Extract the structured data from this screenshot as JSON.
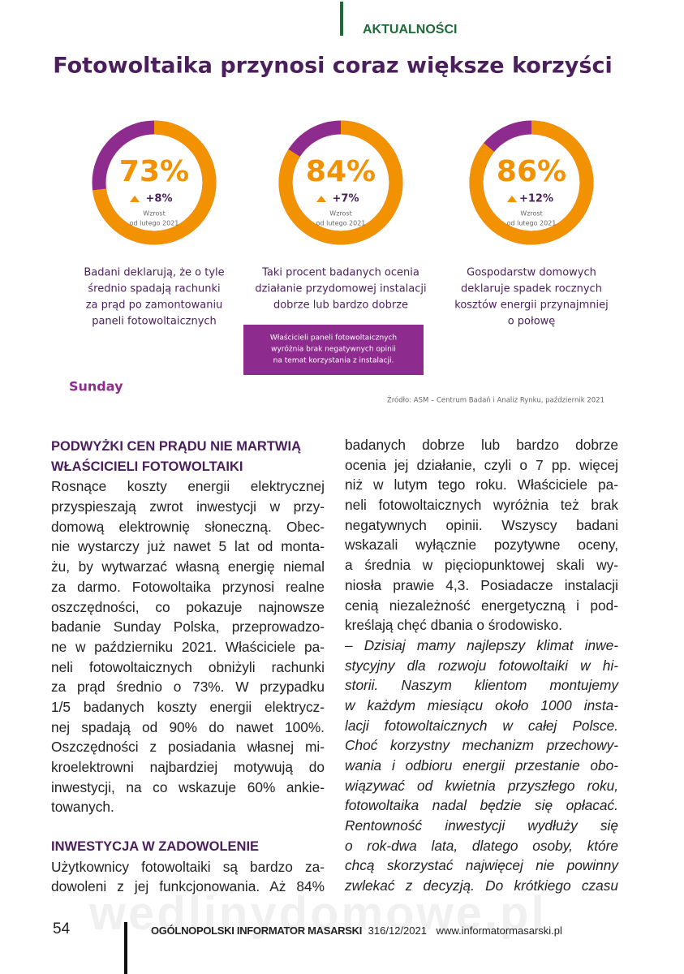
{
  "header": {
    "section": "AKTUALNOŚCI"
  },
  "infographic": {
    "title": "Fotowoltaika przynosi coraz większe korzyści",
    "items": [
      {
        "value": 73,
        "label": "73%",
        "change": "+8%",
        "note": [
          "Wzrost",
          "od lutego 2021"
        ],
        "description": [
          "Badani deklarują, że o tyle",
          "średnio spadają rachunki",
          "za prąd po zamontowaniu",
          "paneli fotowoltaicznych"
        ]
      },
      {
        "value": 84,
        "label": "84%",
        "change": "+7%",
        "note": [
          "Wzrost",
          "od lutego 2021"
        ],
        "description": [
          "Taki procent badanych ocenia",
          "działanie przydomowej instalacji",
          "dobrze lub bardzo dobrze"
        ]
      },
      {
        "value": 86,
        "label": "86%",
        "change": "+12%",
        "note": [
          "Wzrost",
          "od lutego 2021"
        ],
        "description": [
          "Gospodarstw domowych",
          "deklaruje spadek rocznych",
          "kosztów energii przynajmniej",
          "o połowę"
        ]
      }
    ],
    "highlight": [
      "Właścicieli paneli fotowoltaicznych",
      "wyróżnia brak negatywnych opinii",
      "na temat korzystania z instalacji."
    ],
    "logo": "Sunday",
    "source": "Źródło: ASM – Centrum Badań i Analiz Rynku, październik 2021"
  },
  "article": {
    "left": {
      "heading1": [
        "PODWYŻKI CEN PRĄDU NIE MARTWIĄ",
        "WŁAŚCICIELI FOTOWOLTAIKI"
      ],
      "paragraph1": [
        "Rosnące koszty energii elektrycznej",
        "przyspieszają zwrot inwestycji w przy-",
        "domową elektrownię słoneczną. Obec-",
        "nie wystarczy już nawet 5 lat od monta-",
        "żu, by wytwarzać własną energię niemal",
        "za darmo. Fotowoltaika przynosi realne",
        "oszczędności, co pokazuje najnowsze",
        "badanie Sunday Polska, przeprowadzo-",
        "ne w październiku 2021. Właściciele pa-",
        "neli fotowoltaicznych obniżyli rachunki",
        "za prąd średnio o 73%. W przypadku",
        "1/5 badanych koszty energii elektrycz-",
        "nej spadają od 90% do nawet 100%.",
        "Oszczędności z posiadania własnej mi-",
        "kroelektrowni najbardziej motywują do",
        "inwestycji, na co wskazuje 60% ankie-",
        "towanych."
      ],
      "heading2": [
        "INWESTYCJA W ZADOWOLENIE"
      ],
      "paragraph2": [
        "Użytkownicy fotowoltaiki są bardzo za-",
        "dowoleni z jej funkcjonowania. Aż 84%"
      ]
    },
    "right": {
      "paragraph1": [
        "badanych dobrze lub bardzo dobrze",
        "ocenia jej działanie, czyli o 7 pp. więcej",
        "niż w lutym tego roku. Właściciele pa-",
        "neli fotowoltaicznych wyróżnia też brak",
        "negatywnych opinii. Wszyscy badani",
        "wskazali wyłącznie pozytywne oceny,",
        "a średnia w pięciopunktowej skali wy-",
        "niosła prawie 4,3. Posiadacze instalacji",
        "cenią niezależność energetyczną i pod-",
        "kreślają chęć dbania o środowisko."
      ],
      "quote": [
        "– Dzisiaj mamy najlepszy klimat inwe-",
        "stycyjny dla rozwoju fotowoltaiki w hi-",
        "storii. Naszym klientom montujemy",
        "w każdym miesiącu około 1000 insta-",
        "lacji fotowoltaicznych w całej Polsce.",
        "Choć korzystny mechanizm przechowy-",
        "wania i odbioru energii przestanie obo-",
        "wiązywać od kwietnia przyszłego roku,",
        "fotowoltaika nadal będzie się opłacać.",
        "Rentowność inwestycji wydłuży się",
        "o rok-dwa lata, dlatego osoby, które",
        "chcą skorzystać najwięcej nie powinny",
        "zwlekać z decyzją. Do krótkiego czasu"
      ]
    }
  },
  "footer": {
    "page": "54",
    "publication": "OGÓLNOPOLSKI INFORMATOR MASARSKI",
    "issue": "316/12/2021",
    "website": "www.informatormasarski.pl",
    "watermark": "wedlinydomowe.pl"
  }
}
